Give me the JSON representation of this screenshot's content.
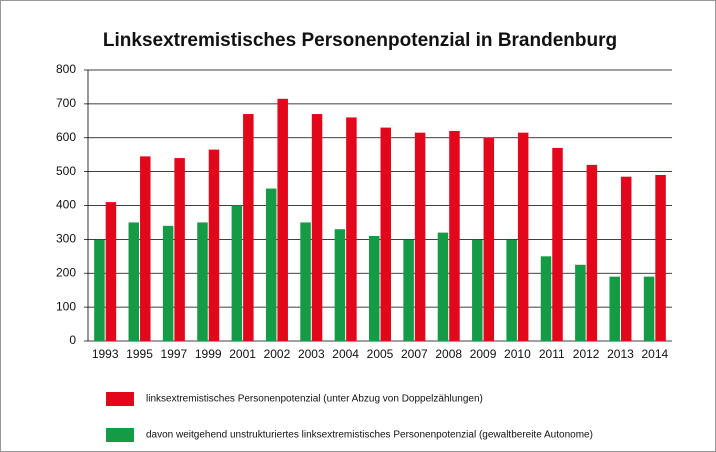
{
  "chart_data": {
    "type": "bar",
    "title": "Linksextremistisches Personenpotenzial in Brandenburg",
    "categories": [
      "1993",
      "1995",
      "1997",
      "1999",
      "2001",
      "2002",
      "2003",
      "2004",
      "2005",
      "2007",
      "2008",
      "2009",
      "2010",
      "2011",
      "2012",
      "2013",
      "2014"
    ],
    "series": [
      {
        "name": "davon weitgehend unstrukturiertes linksextremistisches Personenpotenzial (gewaltbereite Autonome)",
        "color": "#159a45",
        "values": [
          300,
          350,
          340,
          350,
          400,
          450,
          350,
          330,
          310,
          300,
          320,
          300,
          300,
          250,
          225,
          190,
          190
        ]
      },
      {
        "name": "linksextremistisches Personenpotenzial (unter Abzug von Doppelzählungen)",
        "color": "#e3071b",
        "values": [
          410,
          545,
          540,
          565,
          670,
          715,
          670,
          660,
          630,
          615,
          620,
          600,
          615,
          570,
          520,
          485,
          490
        ]
      }
    ],
    "legend_order": [
      1,
      0
    ],
    "ylim": [
      0,
      800
    ],
    "yticks": [
      0,
      100,
      200,
      300,
      400,
      500,
      600,
      700,
      800
    ],
    "grid": true
  }
}
